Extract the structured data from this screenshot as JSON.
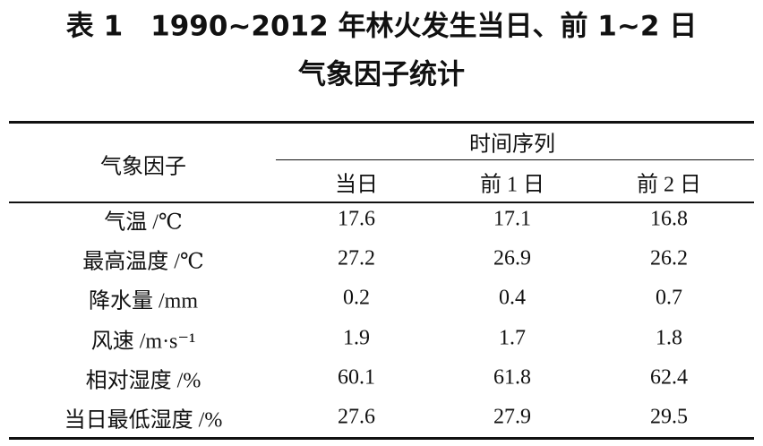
{
  "title": [
    "表 1　1990~2012 年林火发生当日、前 1~2 日",
    "气象因子统计"
  ],
  "table": {
    "row_header": "气象因子",
    "group_header": "时间序列",
    "columns": [
      "当日",
      "前 1 日",
      "前 2 日"
    ],
    "rows": [
      [
        "气温 /℃",
        17.6,
        17.1,
        16.8
      ],
      [
        "最高温度 /℃",
        27.2,
        26.9,
        26.2
      ],
      [
        "降水量 /mm",
        0.2,
        0.4,
        0.7
      ],
      [
        "风速 /m·s⁻¹",
        1.9,
        1.7,
        1.8
      ],
      [
        "相对湿度 /%",
        60.1,
        61.8,
        62.4
      ],
      [
        "当日最低湿度 /%",
        27.6,
        27.9,
        29.5
      ]
    ]
  }
}
